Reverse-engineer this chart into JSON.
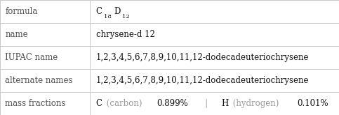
{
  "rows": [
    {
      "label": "formula",
      "value": "formula_special"
    },
    {
      "label": "name",
      "value": "chrysene-d 12"
    },
    {
      "label": "IUPAC name",
      "value": "1,2,3,4,5,6,7,8,9,10,11,12-dodecadeuteriochrysene"
    },
    {
      "label": "alternate names",
      "value": "1,2,3,4,5,6,7,8,9,10,11,12-dodecadeuteriochrysene"
    },
    {
      "label": "mass fractions",
      "value": "mass_fractions_special"
    }
  ],
  "col_split": 0.265,
  "bg_color": "#ffffff",
  "border_color": "#c8c8c8",
  "label_color": "#505050",
  "value_color": "#111111",
  "gray_color": "#999999",
  "font_size": 8.5,
  "fig_width": 4.83,
  "fig_height": 1.65,
  "dpi": 100
}
